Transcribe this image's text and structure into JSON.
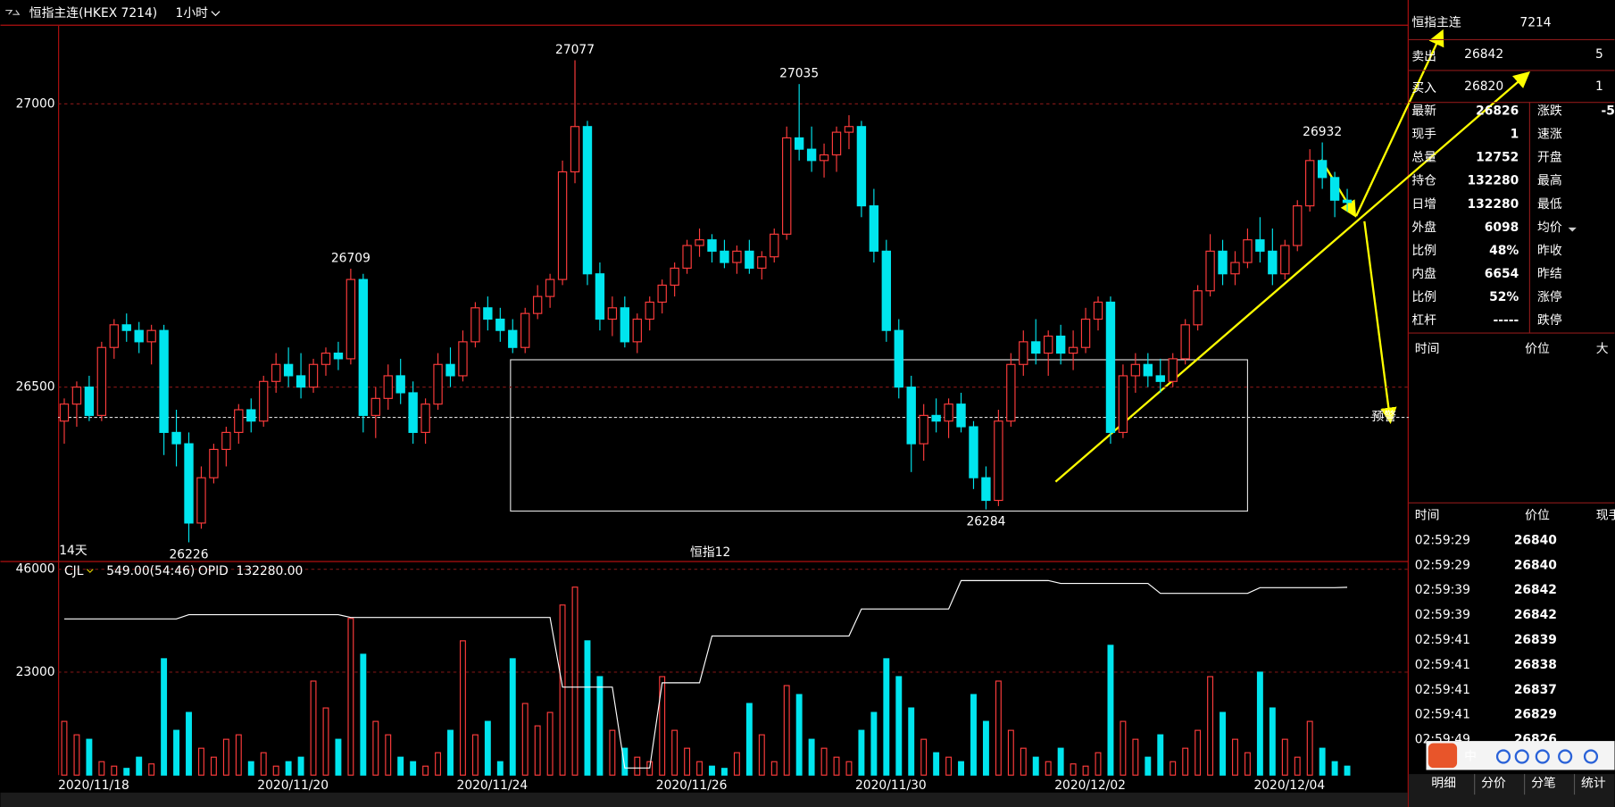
{
  "header": {
    "title": "恒指主连(HKEX 7214)",
    "period": "1小时"
  },
  "chart_data": [
    {
      "type": "candlestick",
      "up_color": "#ff3c3c",
      "down_color": "#00e5ee",
      "ylim": [
        26193,
        27138
      ],
      "yticks": [
        26500,
        27000
      ],
      "grid": true,
      "span_label": "14天",
      "center_label": "恒指12",
      "alert_label": "预警",
      "marked_highs": [
        23,
        41,
        59,
        101
      ],
      "marked_lows": [
        10,
        74
      ],
      "values": [
        [
          26440,
          26480,
          26400,
          26470
        ],
        [
          26470,
          26510,
          26430,
          26500
        ],
        [
          26500,
          26520,
          26440,
          26450
        ],
        [
          26450,
          26580,
          26440,
          26570
        ],
        [
          26570,
          26620,
          26550,
          26610
        ],
        [
          26610,
          26630,
          26580,
          26600
        ],
        [
          26600,
          26615,
          26560,
          26580
        ],
        [
          26580,
          26610,
          26540,
          26600
        ],
        [
          26600,
          26610,
          26380,
          26420
        ],
        [
          26420,
          26460,
          26360,
          26400
        ],
        [
          26400,
          26420,
          26226,
          26260
        ],
        [
          26260,
          26360,
          26250,
          26340
        ],
        [
          26340,
          26400,
          26330,
          26390
        ],
        [
          26390,
          26430,
          26360,
          26420
        ],
        [
          26420,
          26470,
          26400,
          26460
        ],
        [
          26460,
          26480,
          26420,
          26440
        ],
        [
          26440,
          26520,
          26430,
          26510
        ],
        [
          26510,
          26560,
          26490,
          26540
        ],
        [
          26540,
          26570,
          26500,
          26520
        ],
        [
          26520,
          26560,
          26480,
          26500
        ],
        [
          26500,
          26550,
          26490,
          26540
        ],
        [
          26540,
          26570,
          26520,
          26560
        ],
        [
          26560,
          26580,
          26530,
          26550
        ],
        [
          26550,
          26709,
          26540,
          26690
        ],
        [
          26690,
          26700,
          26420,
          26450
        ],
        [
          26450,
          26500,
          26410,
          26480
        ],
        [
          26480,
          26540,
          26460,
          26520
        ],
        [
          26520,
          26550,
          26470,
          26490
        ],
        [
          26490,
          26510,
          26400,
          26420
        ],
        [
          26420,
          26480,
          26400,
          26470
        ],
        [
          26470,
          26560,
          26460,
          26540
        ],
        [
          26540,
          26570,
          26500,
          26520
        ],
        [
          26520,
          26600,
          26510,
          26580
        ],
        [
          26580,
          26650,
          26570,
          26640
        ],
        [
          26640,
          26660,
          26600,
          26620
        ],
        [
          26620,
          26640,
          26580,
          26600
        ],
        [
          26600,
          26620,
          26560,
          26570
        ],
        [
          26570,
          26640,
          26560,
          26630
        ],
        [
          26630,
          26680,
          26620,
          26660
        ],
        [
          26660,
          26700,
          26640,
          26690
        ],
        [
          26690,
          26900,
          26680,
          26880
        ],
        [
          26880,
          27077,
          26860,
          26960
        ],
        [
          26960,
          26970,
          26680,
          26700
        ],
        [
          26700,
          26720,
          26600,
          26620
        ],
        [
          26620,
          26660,
          26590,
          26640
        ],
        [
          26640,
          26660,
          26570,
          26580
        ],
        [
          26580,
          26630,
          26560,
          26620
        ],
        [
          26620,
          26660,
          26600,
          26650
        ],
        [
          26650,
          26690,
          26630,
          26680
        ],
        [
          26680,
          26720,
          26660,
          26710
        ],
        [
          26710,
          26760,
          26700,
          26750
        ],
        [
          26750,
          26780,
          26730,
          26760
        ],
        [
          26760,
          26770,
          26720,
          26740
        ],
        [
          26740,
          26760,
          26710,
          26720
        ],
        [
          26720,
          26750,
          26700,
          26740
        ],
        [
          26740,
          26760,
          26700,
          26710
        ],
        [
          26710,
          26740,
          26690,
          26730
        ],
        [
          26730,
          26780,
          26720,
          26770
        ],
        [
          26770,
          26960,
          26760,
          26940
        ],
        [
          26940,
          27035,
          26900,
          26920
        ],
        [
          26920,
          26960,
          26880,
          26900
        ],
        [
          26900,
          26930,
          26870,
          26910
        ],
        [
          26910,
          26960,
          26880,
          26950
        ],
        [
          26950,
          26980,
          26920,
          26960
        ],
        [
          26960,
          26970,
          26800,
          26820
        ],
        [
          26820,
          26850,
          26720,
          26740
        ],
        [
          26740,
          26760,
          26580,
          26600
        ],
        [
          26600,
          26620,
          26480,
          26500
        ],
        [
          26500,
          26520,
          26350,
          26400
        ],
        [
          26400,
          26470,
          26370,
          26450
        ],
        [
          26450,
          26480,
          26420,
          26440
        ],
        [
          26440,
          26480,
          26410,
          26470
        ],
        [
          26470,
          26490,
          26420,
          26430
        ],
        [
          26430,
          26440,
          26320,
          26340
        ],
        [
          26340,
          26360,
          26284,
          26300
        ],
        [
          26300,
          26460,
          26290,
          26440
        ],
        [
          26440,
          26560,
          26430,
          26540
        ],
        [
          26540,
          26600,
          26520,
          26580
        ],
        [
          26580,
          26620,
          26540,
          26560
        ],
        [
          26560,
          26600,
          26520,
          26590
        ],
        [
          26590,
          26610,
          26540,
          26560
        ],
        [
          26560,
          26600,
          26530,
          26570
        ],
        [
          26570,
          26640,
          26560,
          26620
        ],
        [
          26620,
          26660,
          26600,
          26650
        ],
        [
          26650,
          26660,
          26400,
          26420
        ],
        [
          26420,
          26540,
          26410,
          26520
        ],
        [
          26520,
          26560,
          26490,
          26540
        ],
        [
          26540,
          26560,
          26500,
          26520
        ],
        [
          26520,
          26550,
          26490,
          26510
        ],
        [
          26510,
          26560,
          26500,
          26550
        ],
        [
          26550,
          26620,
          26540,
          26610
        ],
        [
          26610,
          26680,
          26600,
          26670
        ],
        [
          26670,
          26770,
          26660,
          26740
        ],
        [
          26740,
          26760,
          26680,
          26700
        ],
        [
          26700,
          26740,
          26680,
          26720
        ],
        [
          26720,
          26780,
          26710,
          26760
        ],
        [
          26760,
          26800,
          26720,
          26740
        ],
        [
          26740,
          26780,
          26680,
          26700
        ],
        [
          26700,
          26760,
          26690,
          26750
        ],
        [
          26750,
          26830,
          26740,
          26820
        ],
        [
          26820,
          26920,
          26810,
          26900
        ],
        [
          26900,
          26932,
          26850,
          26870
        ],
        [
          26870,
          26880,
          26800,
          26830
        ],
        [
          26830,
          26850,
          26810,
          26826
        ]
      ]
    },
    {
      "type": "bar",
      "ylim": [
        0,
        46000
      ],
      "yticks": [
        23000,
        46000
      ],
      "grid": true,
      "y2lim": [
        0,
        145000
      ],
      "indicator_value": "549.00(54:46)",
      "legend_value": "132280.00",
      "categories": [
        "2020/11/18",
        null,
        null,
        null,
        null,
        null,
        null,
        null,
        null,
        null,
        null,
        null,
        null,
        null,
        null,
        null,
        "2020/11/20",
        null,
        null,
        null,
        null,
        null,
        null,
        null,
        null,
        null,
        null,
        null,
        null,
        null,
        null,
        null,
        "2020/11/24",
        null,
        null,
        null,
        null,
        null,
        null,
        null,
        null,
        null,
        null,
        null,
        null,
        null,
        null,
        null,
        "2020/11/26",
        null,
        null,
        null,
        null,
        null,
        null,
        null,
        null,
        null,
        null,
        null,
        null,
        null,
        null,
        null,
        "2020/11/30",
        null,
        null,
        null,
        null,
        null,
        null,
        null,
        null,
        null,
        null,
        null,
        null,
        null,
        null,
        null,
        "2020/12/02",
        null,
        null,
        null,
        null,
        null,
        null,
        null,
        null,
        null,
        null,
        null,
        null,
        null,
        null,
        null,
        "2020/12/04",
        null,
        null,
        null,
        null,
        null,
        null,
        null
      ],
      "series": [
        {
          "name": "CJL",
          "values": [
            12000,
            9000,
            8000,
            3000,
            2000,
            1500,
            4000,
            2500,
            26000,
            10000,
            14000,
            6000,
            4000,
            8000,
            9000,
            3000,
            5000,
            2000,
            3000,
            4000,
            21000,
            15000,
            8000,
            35000,
            27000,
            12000,
            9000,
            4000,
            3000,
            2000,
            5000,
            10000,
            30000,
            9000,
            12000,
            3000,
            26000,
            16000,
            11000,
            14000,
            38000,
            42000,
            30000,
            22000,
            10000,
            6000,
            4000,
            3000,
            22000,
            10000,
            6000,
            3000,
            2000,
            1500,
            5000,
            16000,
            9000,
            3000,
            20000,
            18000,
            8000,
            6000,
            4000,
            3000,
            10000,
            14000,
            26000,
            22000,
            15000,
            8000,
            5000,
            4000,
            3000,
            18000,
            12000,
            21000,
            10000,
            6000,
            4000,
            3000,
            6000,
            2500,
            2000,
            5000,
            29000,
            12000,
            8000,
            4000,
            9000,
            3000,
            6000,
            10000,
            22000,
            14000,
            8000,
            5000,
            23000,
            15000,
            8000,
            4000,
            12000,
            6000,
            3000,
            2000
          ]
        },
        {
          "name": "OPID",
          "axis": "y2",
          "color": "#ffffff",
          "values": [
            110000,
            110000,
            110000,
            110000,
            110000,
            110000,
            110000,
            110000,
            110000,
            110000,
            113000,
            113000,
            113000,
            113000,
            113000,
            113000,
            113000,
            113000,
            113000,
            113000,
            113000,
            113000,
            113000,
            111000,
            111000,
            111000,
            111000,
            111000,
            111000,
            111000,
            111000,
            111000,
            111000,
            111000,
            111000,
            111000,
            111000,
            111000,
            111000,
            111000,
            62000,
            62000,
            62000,
            62000,
            62000,
            5000,
            5000,
            5000,
            65000,
            65000,
            65000,
            65000,
            98000,
            98000,
            98000,
            98000,
            98000,
            98000,
            98000,
            98000,
            98000,
            98000,
            98000,
            98000,
            117000,
            117000,
            117000,
            117000,
            117000,
            117000,
            117000,
            117000,
            137000,
            137000,
            137000,
            137000,
            137000,
            137000,
            137000,
            137000,
            135000,
            135000,
            135000,
            135000,
            135000,
            135000,
            135000,
            135000,
            128000,
            128000,
            128000,
            128000,
            128000,
            128000,
            128000,
            128000,
            132000,
            132000,
            132000,
            132000,
            132000,
            132000,
            132000,
            132280
          ]
        }
      ]
    }
  ],
  "quote": {
    "name": "恒指主连",
    "code": "7214",
    "ask": {
      "label": "卖出",
      "price": 26842,
      "qty": 5
    },
    "bid": {
      "label": "买入",
      "price": 26820,
      "qty": 1
    },
    "stats": [
      [
        "最新",
        26826
      ],
      [
        "现手",
        1
      ],
      [
        "总量",
        12752
      ],
      [
        "持仓",
        132280
      ],
      [
        "日增",
        132280
      ],
      [
        "外盘",
        6098
      ],
      [
        "比例",
        "48%"
      ],
      [
        "内盘",
        6654
      ],
      [
        "比例",
        "52%"
      ],
      [
        "杠杆",
        "-----"
      ]
    ],
    "stats_right": [
      "涨跌",
      "速涨",
      "开盘",
      "最高",
      "最低",
      "均价",
      "昨收",
      "昨结",
      "涨停",
      "跌停"
    ],
    "change": "-5"
  },
  "ticks": {
    "header1": [
      "时间",
      "价位",
      "大"
    ],
    "header2": [
      "时间",
      "价位",
      "现手"
    ],
    "rows": [
      [
        "02:59:29",
        26840
      ],
      [
        "02:59:29",
        26840
      ],
      [
        "02:59:39",
        26842
      ],
      [
        "02:59:39",
        26842
      ],
      [
        "02:59:41",
        26839
      ],
      [
        "02:59:41",
        26838
      ],
      [
        "02:59:41",
        26837
      ],
      [
        "02:59:41",
        26829
      ],
      [
        "02:59:49",
        26826
      ]
    ]
  },
  "tabs": [
    "明细",
    "分价",
    "分笔",
    "统计"
  ],
  "ime": {
    "label": "中"
  }
}
